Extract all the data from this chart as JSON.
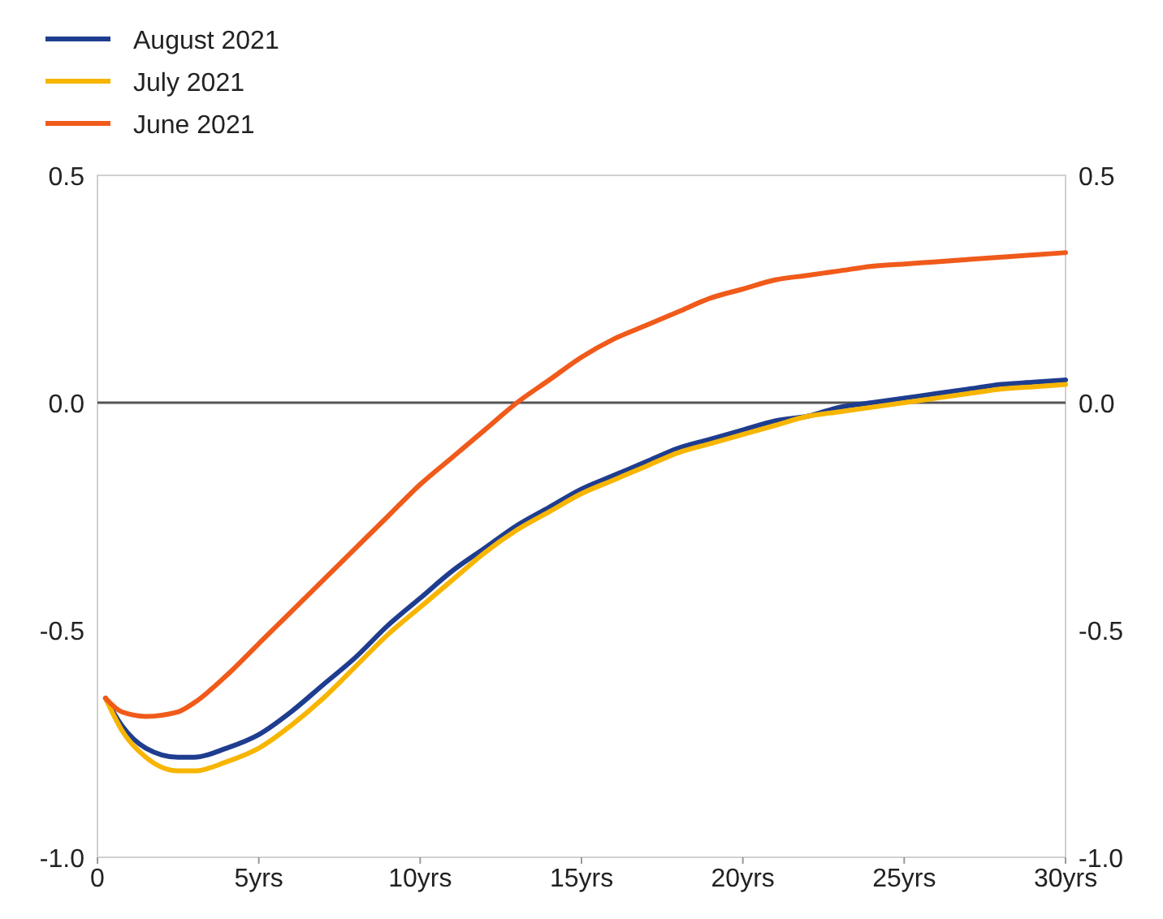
{
  "chart_data": {
    "type": "line",
    "legend": "top left",
    "xlim": [
      0,
      30
    ],
    "ylim": [
      -1.0,
      0.5
    ],
    "y2lim": [
      -1.0,
      0.5
    ],
    "xticks": [
      0,
      {
        "value": 5,
        "label": "5yrs"
      },
      {
        "value": 10,
        "label": "10yrs"
      },
      {
        "value": 15,
        "label": "15yrs"
      },
      {
        "value": 20,
        "label": "20yrs"
      },
      {
        "value": 25,
        "label": "25yrs"
      },
      {
        "value": 30,
        "label": "30yrs"
      }
    ],
    "yticks": [
      {
        "value": -1,
        "label": "-1.0"
      },
      {
        "value": -0.5,
        "label": "-0.5"
      },
      {
        "value": 0,
        "label": "0.0"
      },
      {
        "value": 0.5,
        "label": "0.5"
      }
    ],
    "y2ticks": [
      {
        "value": -1,
        "label": "-1.0"
      },
      {
        "value": -0.5,
        "label": "-0.5"
      },
      {
        "value": 0,
        "label": "0.0"
      },
      {
        "value": 0.5,
        "label": "0.5"
      }
    ],
    "x": [
      0.25,
      0.75,
      1.5,
      2.5,
      3,
      4,
      5,
      6,
      7,
      8,
      9,
      10,
      11,
      12,
      13,
      14,
      15,
      16,
      17,
      18,
      19,
      20,
      21,
      22,
      23,
      24,
      25,
      26,
      27,
      28,
      29,
      30
    ],
    "ref_lines": [
      {
        "axis": "y",
        "value": 0,
        "color": "#555555"
      }
    ],
    "series": [
      {
        "name": "August 2021",
        "color": "#1f3d8f",
        "values": [
          -0.65,
          -0.71,
          -0.76,
          -0.78,
          -0.78,
          -0.76,
          -0.73,
          -0.68,
          -0.62,
          -0.56,
          -0.49,
          -0.43,
          -0.37,
          -0.32,
          -0.27,
          -0.23,
          -0.19,
          -0.16,
          -0.13,
          -0.1,
          -0.08,
          -0.06,
          -0.04,
          -0.03,
          -0.01,
          0.0,
          0.01,
          0.02,
          0.03,
          0.04,
          0.045,
          0.05
        ]
      },
      {
        "name": "July 2021",
        "color": "#f7b500",
        "values": [
          -0.65,
          -0.72,
          -0.78,
          -0.81,
          -0.81,
          -0.79,
          -0.76,
          -0.71,
          -0.65,
          -0.58,
          -0.51,
          -0.45,
          -0.39,
          -0.33,
          -0.28,
          -0.24,
          -0.2,
          -0.17,
          -0.14,
          -0.11,
          -0.09,
          -0.07,
          -0.05,
          -0.03,
          -0.02,
          -0.01,
          0.0,
          0.01,
          0.02,
          0.03,
          0.035,
          0.04
        ]
      },
      {
        "name": "June 2021",
        "color": "#f05a1a",
        "values": [
          -0.65,
          -0.68,
          -0.69,
          -0.68,
          -0.66,
          -0.6,
          -0.53,
          -0.46,
          -0.39,
          -0.32,
          -0.25,
          -0.18,
          -0.12,
          -0.06,
          0.0,
          0.05,
          0.1,
          0.14,
          0.17,
          0.2,
          0.23,
          0.25,
          0.27,
          0.28,
          0.29,
          0.3,
          0.305,
          0.31,
          0.315,
          0.32,
          0.325,
          0.33
        ]
      }
    ]
  }
}
